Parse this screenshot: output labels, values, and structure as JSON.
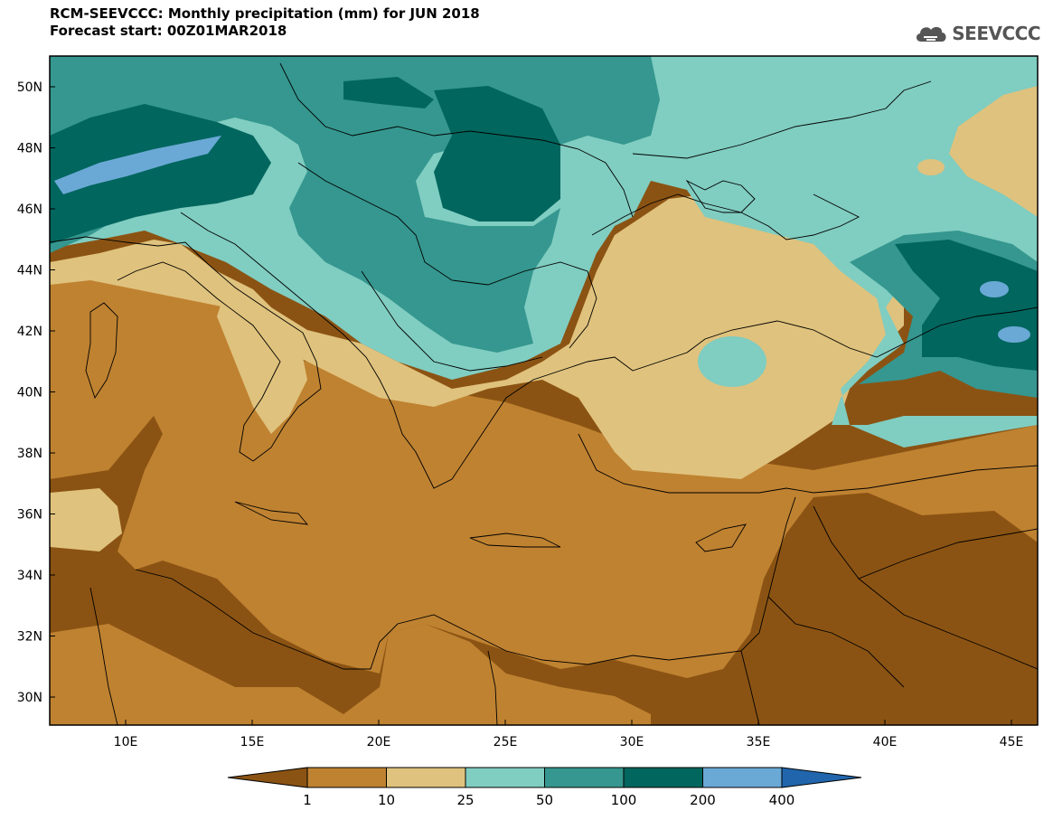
{
  "header": {
    "title_line1": "RCM-SEEVCCC: Monthly precipitation (mm) for JUN 2018",
    "title_line2": "Forecast start: 00Z01MAR2018",
    "logo_text": "SEEVCCC"
  },
  "map": {
    "lat_labels": [
      "50N",
      "48N",
      "46N",
      "44N",
      "42N",
      "40N",
      "38N",
      "36N",
      "34N",
      "32N",
      "30N"
    ],
    "lon_labels": [
      "10E",
      "15E",
      "20E",
      "25E",
      "30E",
      "35E",
      "40E",
      "45E"
    ]
  },
  "legend": {
    "tick_labels": [
      "1",
      "10",
      "25",
      "50",
      "100",
      "200",
      "400"
    ],
    "colors": [
      "#8b5313",
      "#bf8231",
      "#dfc27d",
      "#80cdc1",
      "#35978f",
      "#01665e",
      "#6aa9d6",
      "#2166ac"
    ]
  }
}
